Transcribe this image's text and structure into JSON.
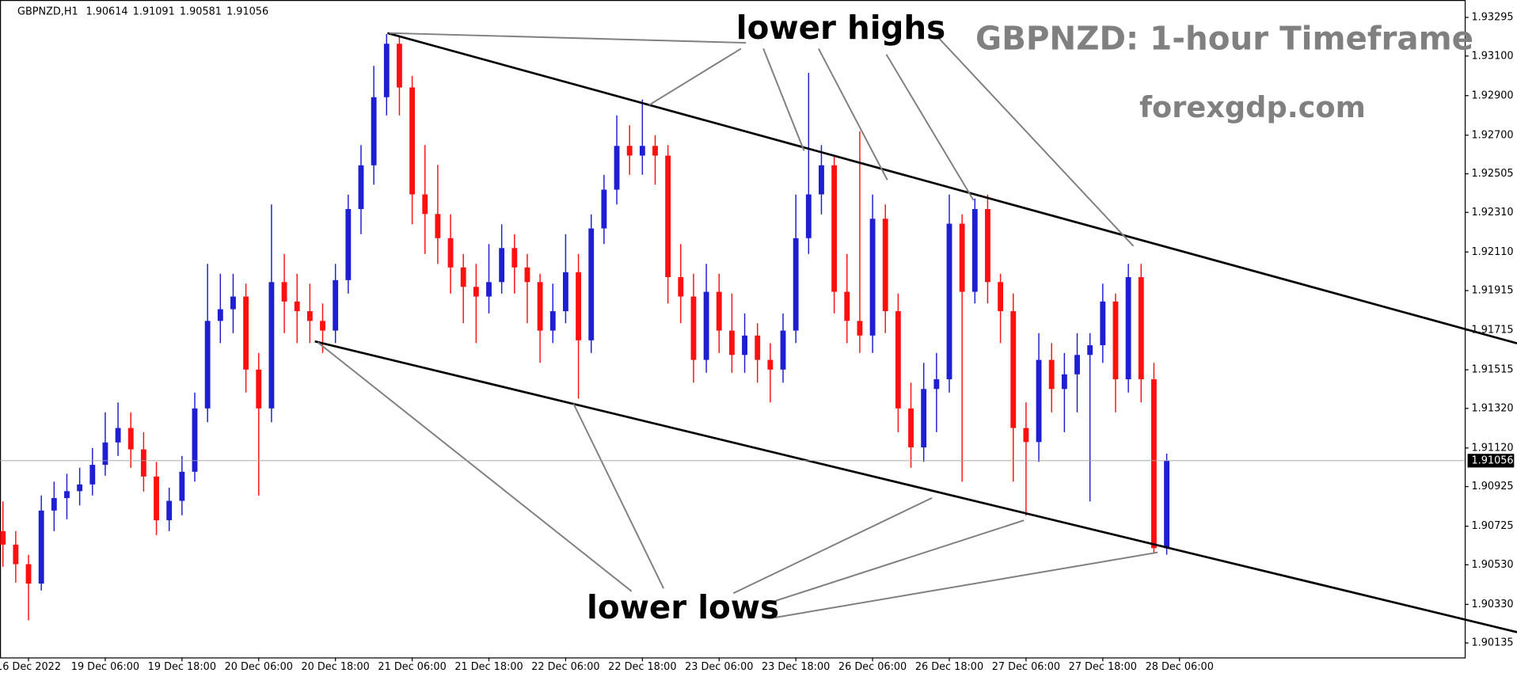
{
  "chart_data": {
    "type": "candlestick",
    "symbol": "GBPNZD,H1",
    "header_ohlc": [
      1.90614,
      1.91091,
      1.90581,
      1.91056
    ],
    "title": "GBPNZD: 1-hour Timeframe",
    "subtitle": "forexgdp.com",
    "annotations": [
      "lower highs",
      "lower lows"
    ],
    "up_color": "#1e1ed2",
    "down_color": "#ff1010",
    "current_price": 1.91056,
    "xlim": [
      -0.23,
      114.3
    ],
    "xticks": [
      {
        "value": 2,
        "label": "16 Dec 2022"
      },
      {
        "value": 8,
        "label": "19 Dec 06:00"
      },
      {
        "value": 14,
        "label": "19 Dec 18:00"
      },
      {
        "value": 20,
        "label": "20 Dec 06:00"
      },
      {
        "value": 26,
        "label": "20 Dec 18:00"
      },
      {
        "value": 32,
        "label": "21 Dec 06:00"
      },
      {
        "value": 38,
        "label": "21 Dec 18:00"
      },
      {
        "value": 44,
        "label": "22 Dec 06:00"
      },
      {
        "value": 50,
        "label": "22 Dec 18:00"
      },
      {
        "value": 56,
        "label": "23 Dec 06:00"
      },
      {
        "value": 62,
        "label": "23 Dec 18:00"
      },
      {
        "value": 68,
        "label": "26 Dec 06:00"
      },
      {
        "value": 74,
        "label": "26 Dec 18:00"
      },
      {
        "value": 80,
        "label": "27 Dec 06:00"
      },
      {
        "value": 86,
        "label": "27 Dec 18:00"
      },
      {
        "value": 92,
        "label": "28 Dec 06:00"
      }
    ],
    "ylim": [
      1.90062,
      1.93383
    ],
    "yticks": [
      1.93295,
      {
        "value": 1.931,
        "label": "1.93100"
      },
      {
        "value": 1.929,
        "label": "1.92900"
      },
      {
        "value": 1.927,
        "label": "1.92700"
      },
      1.92505,
      {
        "value": 1.9231,
        "label": "1.92310"
      },
      {
        "value": 1.9211,
        "label": "1.92110"
      },
      1.91915,
      1.91715,
      1.91515,
      {
        "value": 1.9132,
        "label": "1.91320"
      },
      {
        "value": 1.9112,
        "label": "1.91120"
      },
      1.90925,
      1.90725,
      {
        "value": 1.9053,
        "label": "1.90530"
      },
      {
        "value": 1.9033,
        "label": "1.90330"
      },
      1.90135
    ],
    "ohlc": [
      [
        1.907,
        1.9085,
        1.9052,
        1.90632
      ],
      [
        1.90632,
        1.907,
        1.9044,
        1.90533
      ],
      [
        1.90533,
        1.9058,
        1.9025,
        1.90435
      ],
      [
        1.90435,
        1.9088,
        1.904,
        1.90804
      ],
      [
        1.90804,
        1.9095,
        1.907,
        1.90867
      ],
      [
        1.90867,
        1.9099,
        1.9076,
        1.90902
      ],
      [
        1.90902,
        1.9102,
        1.9083,
        1.90936
      ],
      [
        1.90936,
        1.9112,
        1.9088,
        1.91035
      ],
      [
        1.91035,
        1.913,
        1.9098,
        1.91148
      ],
      [
        1.91148,
        1.9135,
        1.9108,
        1.91221
      ],
      [
        1.91221,
        1.913,
        1.9102,
        1.91113
      ],
      [
        1.91113,
        1.912,
        1.909,
        1.90976
      ],
      [
        1.90976,
        1.9105,
        1.9068,
        1.90755
      ],
      [
        1.90755,
        1.9092,
        1.907,
        1.90853
      ],
      [
        1.90853,
        1.9108,
        1.9078,
        1.91
      ],
      [
        1.91,
        1.914,
        1.9095,
        1.9132
      ],
      [
        1.9132,
        1.9205,
        1.9125,
        1.91762
      ],
      [
        1.91762,
        1.92,
        1.9165,
        1.91821
      ],
      [
        1.91821,
        1.92,
        1.917,
        1.91885
      ],
      [
        1.91885,
        1.9195,
        1.914,
        1.91516
      ],
      [
        1.91516,
        1.916,
        1.9088,
        1.9132
      ],
      [
        1.9132,
        1.9235,
        1.9125,
        1.91958
      ],
      [
        1.91958,
        1.921,
        1.917,
        1.9186
      ],
      [
        1.9186,
        1.92,
        1.9165,
        1.91811
      ],
      [
        1.91811,
        1.9195,
        1.9165,
        1.91762
      ],
      [
        1.91762,
        1.9185,
        1.916,
        1.91713
      ],
      [
        1.91713,
        1.9205,
        1.9165,
        1.91968
      ],
      [
        1.91968,
        1.924,
        1.919,
        1.92327
      ],
      [
        1.92327,
        1.9265,
        1.922,
        1.92548
      ],
      [
        1.92548,
        1.9305,
        1.9245,
        1.92892
      ],
      [
        1.92892,
        1.93211,
        1.928,
        1.93162
      ],
      [
        1.93162,
        1.932,
        1.928,
        1.92941
      ],
      [
        1.92941,
        1.93,
        1.9225,
        1.92401
      ],
      [
        1.92401,
        1.9265,
        1.921,
        1.92302
      ],
      [
        1.92302,
        1.9255,
        1.9205,
        1.9218
      ],
      [
        1.9218,
        1.923,
        1.919,
        1.92032
      ],
      [
        1.92032,
        1.921,
        1.9175,
        1.91934
      ],
      [
        1.91934,
        1.9205,
        1.9165,
        1.91885
      ],
      [
        1.91885,
        1.9215,
        1.918,
        1.91958
      ],
      [
        1.91958,
        1.9225,
        1.919,
        1.9213
      ],
      [
        1.9213,
        1.922,
        1.919,
        1.92032
      ],
      [
        1.92032,
        1.921,
        1.9175,
        1.91958
      ],
      [
        1.91958,
        1.92,
        1.9155,
        1.91713
      ],
      [
        1.91713,
        1.9195,
        1.9165,
        1.91811
      ],
      [
        1.91811,
        1.922,
        1.9175,
        1.92008
      ],
      [
        1.92008,
        1.921,
        1.91369,
        1.91664
      ],
      [
        1.91664,
        1.923,
        1.916,
        1.92229
      ],
      [
        1.92229,
        1.925,
        1.9215,
        1.92425
      ],
      [
        1.92425,
        1.928,
        1.9235,
        1.92646
      ],
      [
        1.92646,
        1.9275,
        1.925,
        1.92597
      ],
      [
        1.92597,
        1.9288,
        1.925,
        1.92646
      ],
      [
        1.92646,
        1.927,
        1.9245,
        1.92597
      ],
      [
        1.92597,
        1.9265,
        1.9185,
        1.91983
      ],
      [
        1.91983,
        1.9215,
        1.9175,
        1.91885
      ],
      [
        1.91885,
        1.92,
        1.9145,
        1.91565
      ],
      [
        1.91565,
        1.9205,
        1.915,
        1.91909
      ],
      [
        1.91909,
        1.92,
        1.916,
        1.91713
      ],
      [
        1.91713,
        1.919,
        1.915,
        1.9159
      ],
      [
        1.9159,
        1.918,
        1.915,
        1.91688
      ],
      [
        1.91688,
        1.9175,
        1.9145,
        1.91565
      ],
      [
        1.91565,
        1.9165,
        1.9135,
        1.91516
      ],
      [
        1.91516,
        1.918,
        1.9145,
        1.91713
      ],
      [
        1.91713,
        1.924,
        1.9165,
        1.9218
      ],
      [
        1.9218,
        1.93015,
        1.921,
        1.92401
      ],
      [
        1.92401,
        1.9265,
        1.923,
        1.92548
      ],
      [
        1.92548,
        1.926,
        1.918,
        1.91909
      ],
      [
        1.91909,
        1.921,
        1.9165,
        1.91762
      ],
      [
        1.91762,
        1.9272,
        1.916,
        1.91688
      ],
      [
        1.91688,
        1.924,
        1.916,
        1.92278
      ],
      [
        1.92278,
        1.9235,
        1.917,
        1.91811
      ],
      [
        1.91811,
        1.919,
        1.912,
        1.9132
      ],
      [
        1.9132,
        1.9145,
        1.9102,
        1.91123
      ],
      [
        1.91123,
        1.9155,
        1.9105,
        1.91418
      ],
      [
        1.91418,
        1.916,
        1.912,
        1.91467
      ],
      [
        1.91467,
        1.924,
        1.914,
        1.92253
      ],
      [
        1.92253,
        1.923,
        1.9095,
        1.91909
      ],
      [
        1.91909,
        1.9238,
        1.9185,
        1.92327
      ],
      [
        1.92327,
        1.924,
        1.9185,
        1.91958
      ],
      [
        1.91958,
        1.92,
        1.9165,
        1.91811
      ],
      [
        1.91811,
        1.919,
        1.9095,
        1.91221
      ],
      [
        1.91221,
        1.9135,
        1.90779,
        1.9115
      ],
      [
        1.9115,
        1.917,
        1.9105,
        1.91565
      ],
      [
        1.91565,
        1.9165,
        1.913,
        1.91418
      ],
      [
        1.91418,
        1.916,
        1.912,
        1.91492
      ],
      [
        1.91492,
        1.917,
        1.913,
        1.9159
      ],
      [
        1.9159,
        1.917,
        1.9085,
        1.91639
      ],
      [
        1.91639,
        1.9195,
        1.9155,
        1.9186
      ],
      [
        1.9186,
        1.919,
        1.913,
        1.91467
      ],
      [
        1.91467,
        1.9205,
        1.914,
        1.91983
      ],
      [
        1.91983,
        1.9205,
        1.9135,
        1.91467
      ],
      [
        1.91467,
        1.9155,
        1.9059,
        1.90614
      ],
      [
        1.90614,
        1.91091,
        1.90581,
        1.91056
      ]
    ]
  }
}
